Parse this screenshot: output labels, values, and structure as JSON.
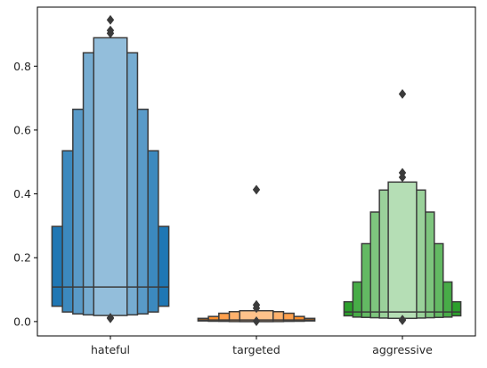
{
  "chart_data": {
    "type": "boxen",
    "categories": [
      "hateful",
      "targeted",
      "aggressive"
    ],
    "ylim": [
      -0.045,
      0.985
    ],
    "yticks": [
      0.0,
      0.2,
      0.4,
      0.6,
      0.8
    ],
    "ytick_labels": [
      "0.0",
      "0.2",
      "0.4",
      "0.6",
      "0.8"
    ],
    "xlabel": "",
    "ylabel": "",
    "title": "",
    "grid": false,
    "colors": {
      "hateful": "#1f77b4",
      "targeted": "#ff7f0e",
      "aggressive": "#2ca02c",
      "edge": "#3b3b3b"
    },
    "series": [
      {
        "category": "hateful",
        "median": 0.108,
        "boxes": [
          [
            0.048,
            0.298
          ],
          [
            0.03,
            0.535
          ],
          [
            0.024,
            0.665
          ],
          [
            0.021,
            0.842
          ],
          [
            0.019,
            0.889
          ]
        ],
        "outliers": [
          0.945,
          0.912,
          0.903,
          0.012,
          0.01
        ]
      },
      {
        "category": "targeted",
        "median": 0.005,
        "boxes": [
          [
            0.002,
            0.01
          ],
          [
            0.001,
            0.016
          ],
          [
            0.001,
            0.026
          ],
          [
            0.0,
            0.031
          ],
          [
            0.0,
            0.034
          ]
        ],
        "outliers": [
          0.413,
          0.052,
          0.042,
          0.001
        ]
      },
      {
        "category": "aggressive",
        "median": 0.03,
        "boxes": [
          [
            0.018,
            0.062
          ],
          [
            0.014,
            0.124
          ],
          [
            0.013,
            0.244
          ],
          [
            0.012,
            0.343
          ],
          [
            0.011,
            0.412
          ],
          [
            0.01,
            0.437
          ]
        ],
        "outliers": [
          0.713,
          0.466,
          0.452,
          0.006,
          0.004
        ]
      }
    ]
  }
}
